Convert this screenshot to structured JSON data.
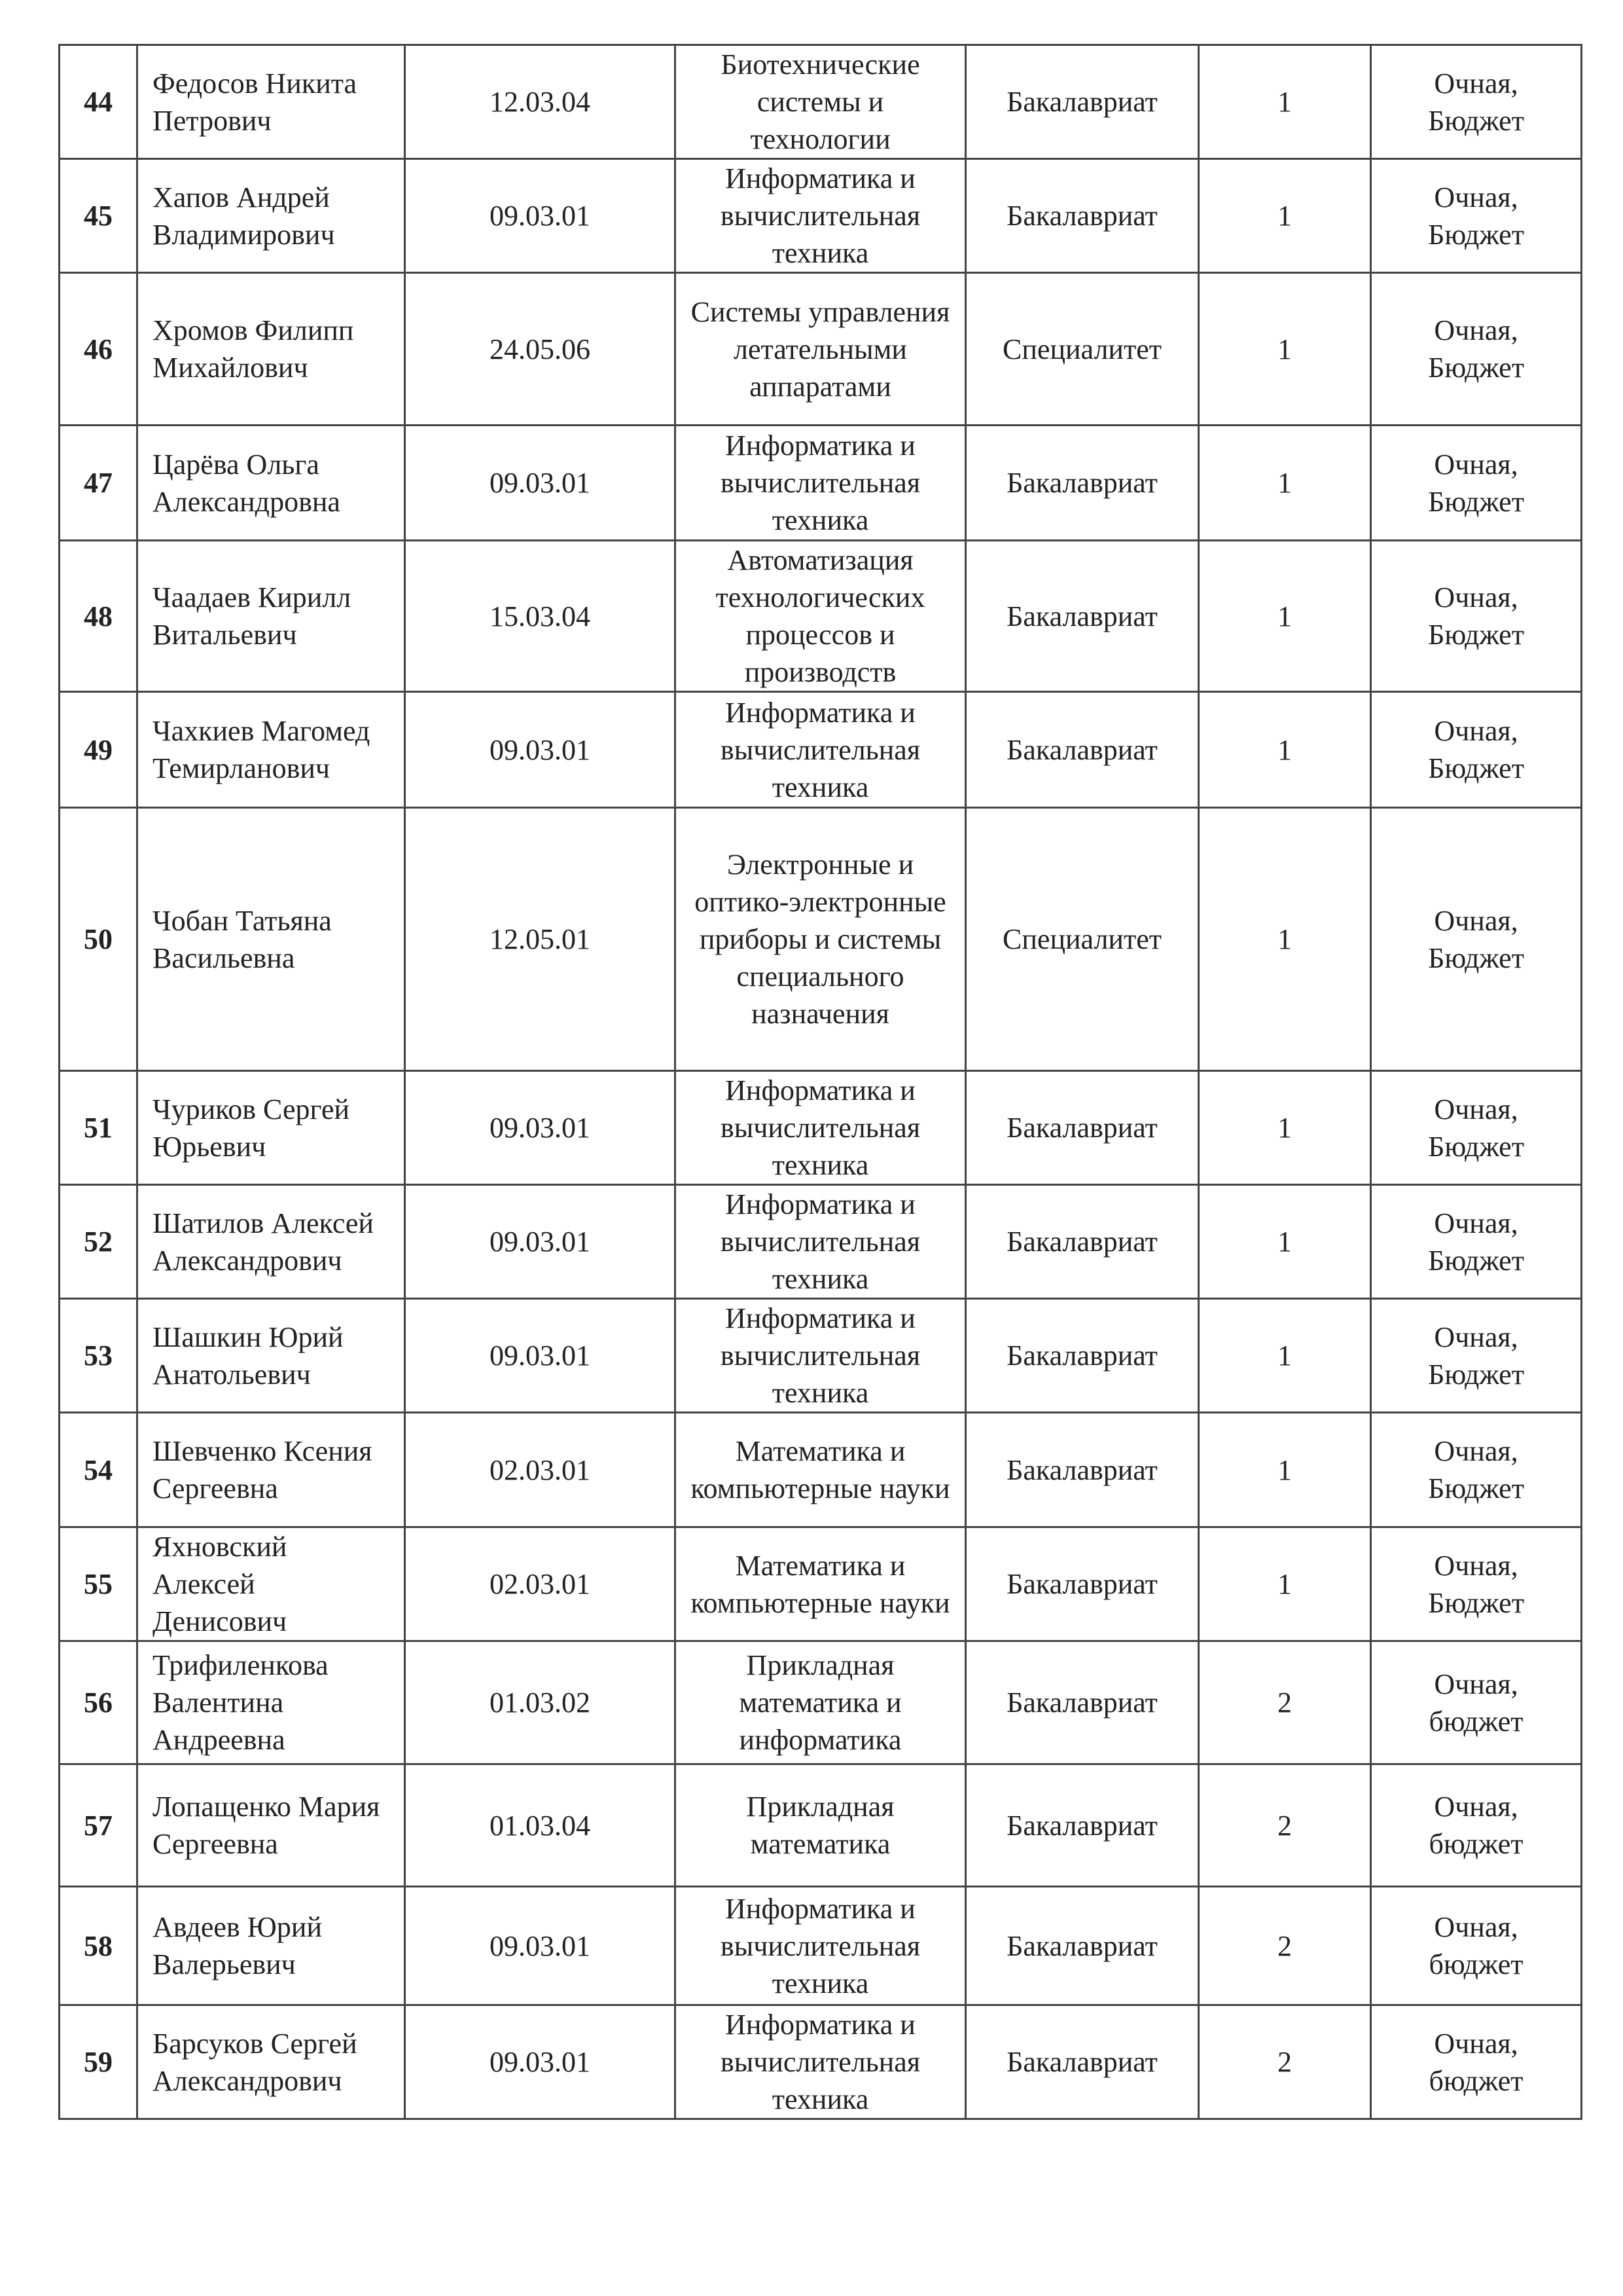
{
  "rows": [
    {
      "num": "44",
      "name": "Федосов Никита Петрович",
      "code": "12.03.04",
      "program": "Биотехнические системы и технологии",
      "level": "Бакалавриат",
      "course": "1",
      "form": "Очная, Бюджет"
    },
    {
      "num": "45",
      "name": "Хапов Андрей Владимирович",
      "code": "09.03.01",
      "program": "Информатика и вычислительная техника",
      "level": "Бакалавриат",
      "course": "1",
      "form": "Очная, Бюджет"
    },
    {
      "num": "46",
      "name": "Хромов Филипп Михайлович",
      "code": "24.05.06",
      "program": "Системы управления летательными аппаратами",
      "level": "Специалитет",
      "course": "1",
      "form": "Очная, Бюджет"
    },
    {
      "num": "47",
      "name": "Царёва Ольга Александровна",
      "code": "09.03.01",
      "program": "Информатика и вычислительная техника",
      "level": "Бакалавриат",
      "course": "1",
      "form": "Очная, Бюджет"
    },
    {
      "num": "48",
      "name": "Чаадаев Кирилл Витальевич",
      "code": "15.03.04",
      "program": "Автоматизация технологических процессов и производств",
      "level": "Бакалавриат",
      "course": "1",
      "form": "Очная, Бюджет"
    },
    {
      "num": "49",
      "name": "Чахкиев Магомед Темирланович",
      "code": "09.03.01",
      "program": "Информатика и вычислительная техника",
      "level": "Бакалавриат",
      "course": "1",
      "form": "Очная, Бюджет"
    },
    {
      "num": "50",
      "name": "Чобан Татьяна Васильевна",
      "code": "12.05.01",
      "program": "Электронные и оптико-электронные приборы и системы специального назначения",
      "level": "Специалитет",
      "course": "1",
      "form": "Очная, Бюджет"
    },
    {
      "num": "51",
      "name": "Чуриков Сергей Юрьевич",
      "code": "09.03.01",
      "program": "Информатика и вычислительная техника",
      "level": "Бакалавриат",
      "course": "1",
      "form": "Очная, Бюджет"
    },
    {
      "num": "52",
      "name": "Шатилов Алексей Александрович",
      "code": "09.03.01",
      "program": "Информатика и вычислительная техника",
      "level": "Бакалавриат",
      "course": "1",
      "form": "Очная, Бюджет"
    },
    {
      "num": "53",
      "name": "Шашкин Юрий Анатольевич",
      "code": "09.03.01",
      "program": "Информатика и вычислительная техника",
      "level": "Бакалавриат",
      "course": "1",
      "form": "Очная, Бюджет"
    },
    {
      "num": "54",
      "name": "Шевченко Ксения Сергеевна",
      "code": "02.03.01",
      "program": "Математика и компьютерные науки",
      "level": "Бакалавриат",
      "course": "1",
      "form": "Очная, Бюджет"
    },
    {
      "num": "55",
      "name": "Яхновский Алексей Денисович",
      "code": "02.03.01",
      "program": "Математика и компьютерные науки",
      "level": "Бакалавриат",
      "course": "1",
      "form": "Очная, Бюджет"
    },
    {
      "num": "56",
      "name": "Трифиленкова Валентина Андреевна",
      "code": "01.03.02",
      "program": "Прикладная математика и информатика",
      "level": "Бакалавриат",
      "course": "2",
      "form": "Очная, бюджет"
    },
    {
      "num": "57",
      "name": "Лопащенко Мария Сергеевна",
      "code": "01.03.04",
      "program": "Прикладная математика",
      "level": "Бакалавриат",
      "course": "2",
      "form": "Очная, бюджет"
    },
    {
      "num": "58",
      "name": "Авдеев Юрий Валерьевич",
      "code": "09.03.01",
      "program": "Информатика и вычислительная техника",
      "level": "Бакалавриат",
      "course": "2",
      "form": "Очная, бюджет"
    },
    {
      "num": "59",
      "name": "Барсуков Сергей Александрович",
      "code": "09.03.01",
      "program": "Информатика и вычислительная техника",
      "level": "Бакалавриат",
      "course": "2",
      "form": "Очная, бюджет"
    }
  ]
}
